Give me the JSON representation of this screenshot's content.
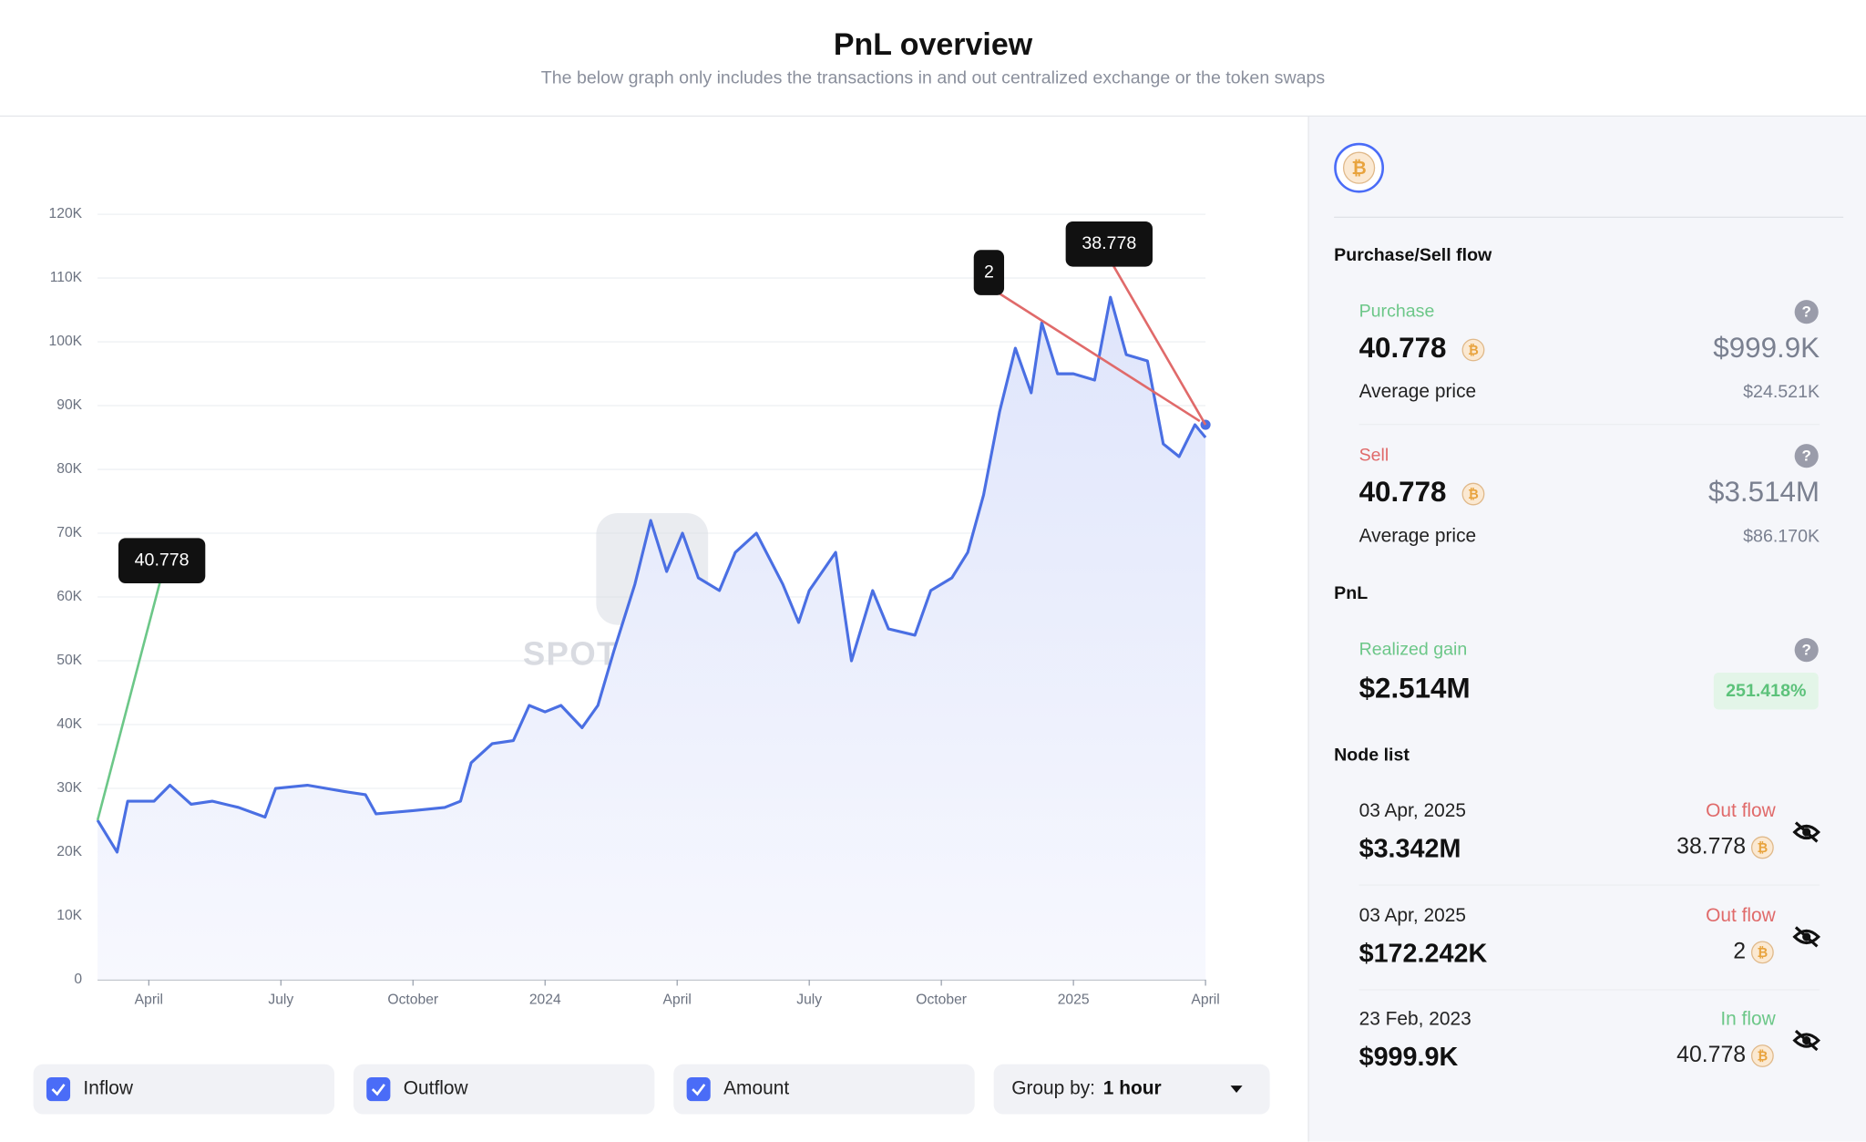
{
  "header": {
    "title": "PnL overview",
    "subtitle": "The below graph only includes the transactions in and out centralized exchange or the token swaps"
  },
  "chart_data": {
    "type": "line",
    "color": "#4a6fe3",
    "watermark": "SPOTONCHAIN",
    "x": [
      2023.153,
      2023.19,
      2023.21,
      2023.26,
      2023.29,
      2023.33,
      2023.37,
      2023.42,
      2023.47,
      2023.49,
      2023.55,
      2023.62,
      2023.66,
      2023.68,
      2023.75,
      2023.81,
      2023.84,
      2023.86,
      2023.9,
      2023.94,
      2023.97,
      2024.0,
      2024.03,
      2024.07,
      2024.1,
      2024.13,
      2024.17,
      2024.2,
      2024.23,
      2024.26,
      2024.29,
      2024.33,
      2024.36,
      2024.4,
      2024.45,
      2024.48,
      2024.5,
      2024.55,
      2024.58,
      2024.62,
      2024.65,
      2024.7,
      2024.73,
      2024.77,
      2024.8,
      2024.83,
      2024.86,
      2024.89,
      2024.92,
      2024.94,
      2024.97,
      2025.0,
      2025.04,
      2025.07,
      2025.1,
      2025.14,
      2025.17,
      2025.2,
      2025.23,
      2025.25
    ],
    "values": [
      25000,
      20000,
      28000,
      28000,
      30500,
      27500,
      28000,
      27000,
      25500,
      30000,
      30500,
      29500,
      29000,
      26000,
      26500,
      27000,
      28000,
      34000,
      37000,
      37500,
      43000,
      42000,
      43000,
      39500,
      43000,
      51500,
      62000,
      72000,
      64000,
      70000,
      63000,
      61000,
      67000,
      70000,
      62000,
      56000,
      61000,
      67000,
      50000,
      61000,
      55000,
      54000,
      61000,
      63000,
      67000,
      76000,
      89000,
      99000,
      92000,
      103000,
      95000,
      95000,
      94000,
      107000,
      98000,
      97000,
      84000,
      82000,
      87000,
      85000
    ],
    "xlim": [
      2023.153,
      2025.25
    ],
    "xticks": [
      {
        "value": 2023.25,
        "label": "April"
      },
      {
        "value": 2023.5,
        "label": "July"
      },
      {
        "value": 2023.75,
        "label": "October"
      },
      {
        "value": 2024,
        "label": "2024"
      },
      {
        "value": 2024.25,
        "label": "April"
      },
      {
        "value": 2024.5,
        "label": "July"
      },
      {
        "value": 2024.75,
        "label": "October"
      },
      {
        "value": 2025,
        "label": "2025"
      },
      {
        "value": 2025.25,
        "label": "April"
      }
    ],
    "ylim": [
      0,
      120000
    ],
    "yticks": [
      0,
      {
        "value": 10000,
        "label": "10K"
      },
      {
        "value": 20000,
        "label": "20K"
      },
      {
        "value": 30000,
        "label": "30K"
      },
      {
        "value": 40000,
        "label": "40K"
      },
      {
        "value": 50000,
        "label": "50K"
      },
      {
        "value": 60000,
        "label": "60K"
      },
      {
        "value": 70000,
        "label": "70K"
      },
      {
        "value": 80000,
        "label": "80K"
      },
      {
        "value": 90000,
        "label": "90K"
      },
      {
        "value": 100000,
        "label": "100K"
      },
      {
        "value": 110000,
        "label": "110K"
      },
      {
        "value": 120000,
        "label": "120K"
      }
    ],
    "grid": true,
    "annotations": [
      {
        "label": "40.778",
        "x": 2023.153,
        "y": 25000,
        "color": "#6cc788"
      },
      {
        "label": "2",
        "x": 2025.25,
        "y": 87000,
        "color": "#e06a6a"
      },
      {
        "label": "38.778",
        "x": 2025.25,
        "y": 87000,
        "color": "#e06a6a"
      }
    ]
  },
  "controls": {
    "toggles": [
      "Inflow",
      "Outflow",
      "Amount"
    ],
    "group_label": "Group by:",
    "group_value": "1 hour"
  },
  "panel": {
    "help": "?",
    "flow_title": "Purchase/Sell flow",
    "purchase": {
      "label": "Purchase",
      "amount": "40.778",
      "usd": "$999.9K",
      "avg_label": "Average price",
      "avg": "$24.521K"
    },
    "sell": {
      "label": "Sell",
      "amount": "40.778",
      "usd": "$3.514M",
      "avg_label": "Average price",
      "avg": "$86.170K"
    },
    "pnl_title": "PnL",
    "realized": {
      "label": "Realized gain",
      "value": "$2.514M",
      "pct": "251.418%"
    },
    "node_title": "Node list",
    "nodes": [
      {
        "date": "03 Apr, 2025",
        "flow": "Out flow",
        "usd": "$3.342M",
        "amount": "38.778"
      },
      {
        "date": "03 Apr, 2025",
        "flow": "Out flow",
        "usd": "$172.242K",
        "amount": "2"
      },
      {
        "date": "23 Feb, 2023",
        "flow": "In flow",
        "usd": "$999.9K",
        "amount": "40.778"
      }
    ]
  }
}
